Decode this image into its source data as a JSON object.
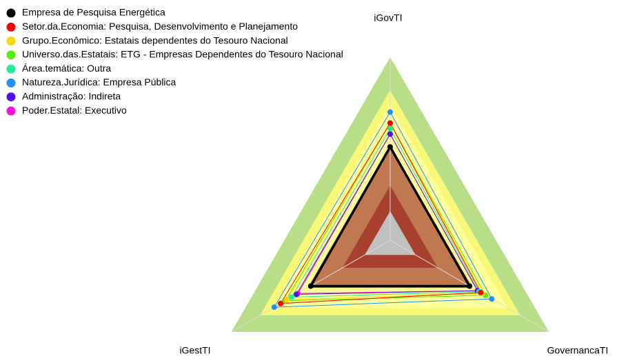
{
  "chart_data": {
    "type": "radar",
    "axes": [
      "iGovTI",
      "GovernancaTI",
      "iGestTI"
    ],
    "rlim": [
      0,
      1
    ],
    "legend": "top-left",
    "series": [
      {
        "name": "Empresa de Pesquisa Energética",
        "color": "#000000",
        "values": [
          0.51,
          0.5,
          0.5
        ]
      },
      {
        "name": "Setor.da.Economia: Pesquisa, Desenvolvimento e Planejamento",
        "color": "#ff0000",
        "values": [
          0.64,
          0.57,
          0.69
        ]
      },
      {
        "name": "Grupo.Econômico: Estatais dependentes do Tesouro Nacional",
        "color": "#ffd700",
        "values": [
          0.64,
          0.58,
          0.65
        ]
      },
      {
        "name": "Universo.das.Estatais: ETG - Empresas Dependentes do Tesouro Nacional",
        "color": "#55ee00",
        "values": [
          0.64,
          0.6,
          0.66
        ]
      },
      {
        "name": "Área.temática: Outra",
        "color": "#22ee99",
        "values": [
          0.61,
          0.56,
          0.62
        ]
      },
      {
        "name": "Natureza.Jurídica: Empresa Pública",
        "color": "#1e90ff",
        "values": [
          0.7,
          0.64,
          0.73
        ]
      },
      {
        "name": "Administração: Indireta",
        "color": "#5511ee",
        "values": [
          0.58,
          0.55,
          0.59
        ]
      },
      {
        "name": "Poder.Estatal: Executivo",
        "color": "#ff11dd",
        "values": [
          0.58,
          0.55,
          0.58
        ]
      }
    ]
  }
}
